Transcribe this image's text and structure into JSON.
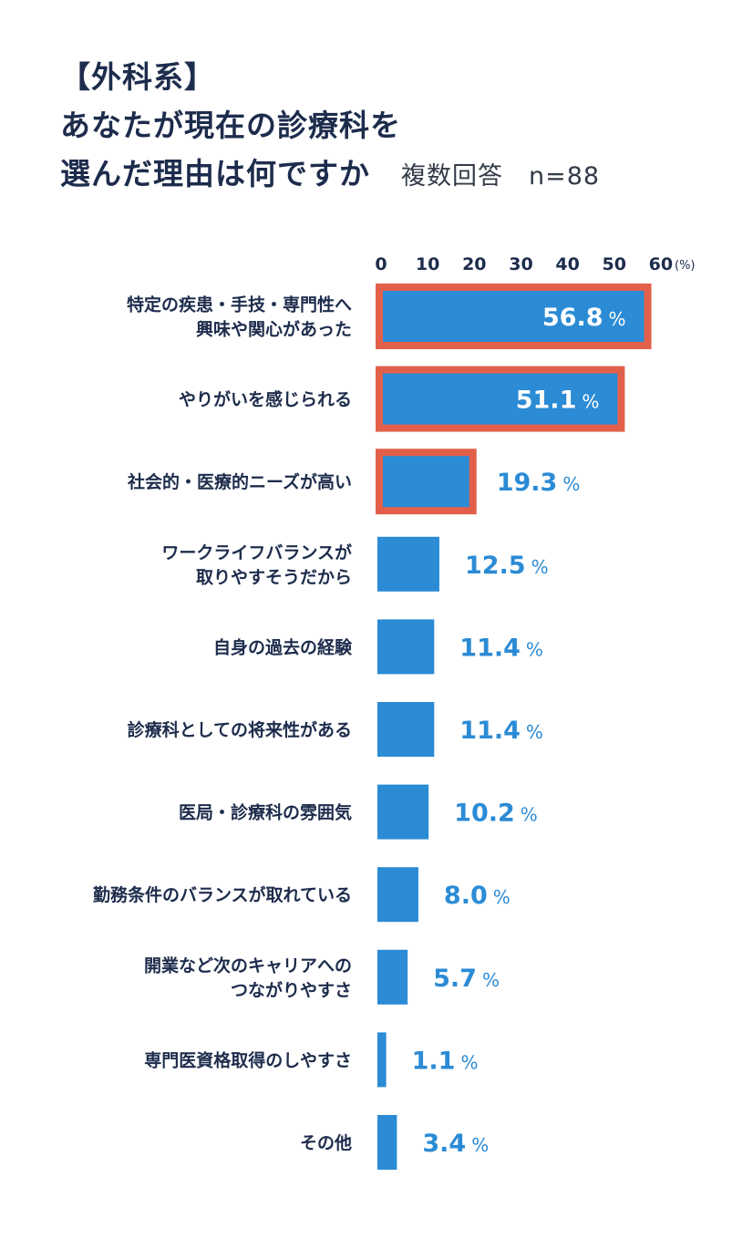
{
  "header": {
    "title_line1": "【外科系】",
    "title_line2": "あなたが現在の診療科を",
    "title_line3": "選んだ理由は何ですか",
    "subtitle": "複数回答",
    "sample_size": "n=88"
  },
  "colors": {
    "bar": "#2b8bd5",
    "highlight_border": "#e2604a",
    "value_label": "#2b8bd5",
    "value_label_inside": "#ffffff",
    "text": "#1d2c4c"
  },
  "chart_data": {
    "type": "bar",
    "orientation": "horizontal",
    "categories": [
      [
        "特定の疾患・手技・専門性へ",
        "興味や関心があった"
      ],
      [
        "やりがいを感じられる"
      ],
      [
        "社会的・医療的ニーズが高い"
      ],
      [
        "ワークライフバランスが",
        "取りやすそうだから"
      ],
      [
        "自身の過去の経験"
      ],
      [
        "診療科としての将来性がある"
      ],
      [
        "医局・診療科の雰囲気"
      ],
      [
        "勤務条件のバランスが取れている"
      ],
      [
        "開業など次のキャリアへの",
        "つながりやすさ"
      ],
      [
        "専門医資格取得のしやすさ"
      ],
      [
        "その他"
      ]
    ],
    "values": [
      56.8,
      51.1,
      19.3,
      12.5,
      11.4,
      11.4,
      10.2,
      8.0,
      5.7,
      1.1,
      3.4
    ],
    "value_labels": [
      "56.8",
      "51.1",
      "19.3",
      "12.5",
      "11.4",
      "11.4",
      "10.2",
      "8.0",
      "5.7",
      "1.1",
      "3.4"
    ],
    "value_unit": "%",
    "highlighted": [
      true,
      true,
      true,
      false,
      false,
      false,
      false,
      false,
      false,
      false,
      false
    ],
    "label_inside": [
      true,
      true,
      false,
      false,
      false,
      false,
      false,
      false,
      false,
      false,
      false
    ],
    "xlim": [
      0,
      60
    ],
    "xticks": [
      "0",
      "10",
      "20",
      "30",
      "40",
      "50",
      "60"
    ],
    "axis_unit": "(%)",
    "grid": false
  }
}
